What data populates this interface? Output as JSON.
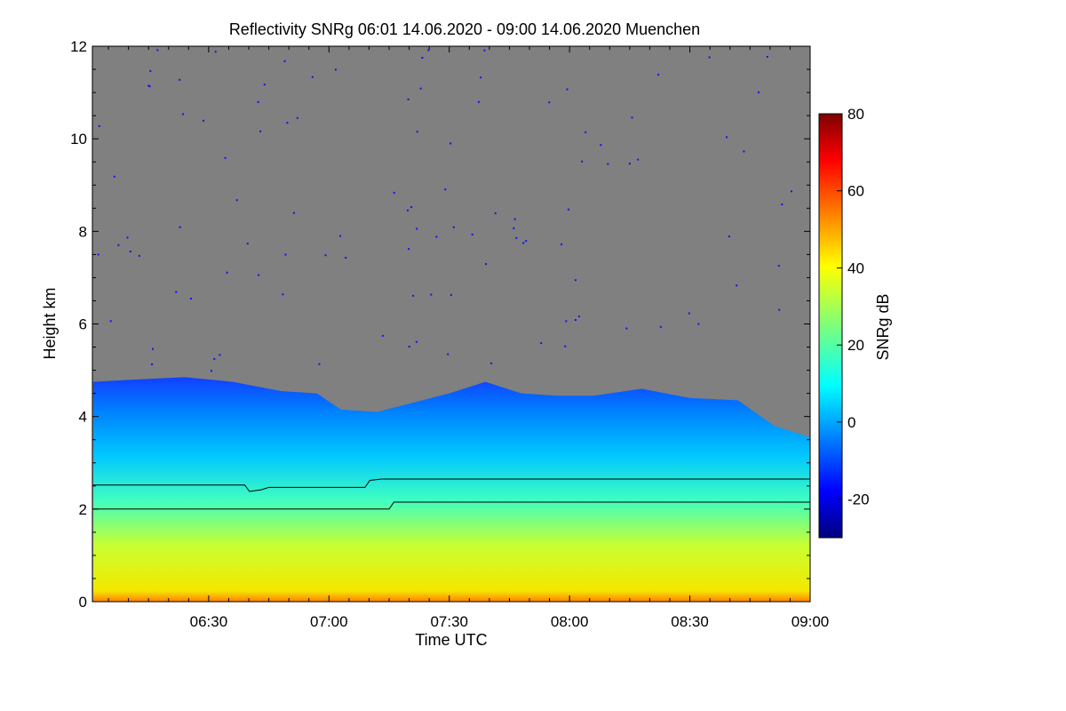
{
  "chart_data": {
    "type": "heatmap",
    "title": "Reflectivity SNRg   06:01 14.06.2020 - 09:00 14.06.2020 Muenchen",
    "xlabel": "Time UTC",
    "ylabel": "Height km",
    "x_ticks": [
      "06:30",
      "07:00",
      "07:30",
      "08:00",
      "08:30",
      "09:00"
    ],
    "x_tick_hours": [
      6.5,
      7.0,
      7.5,
      8.0,
      8.5,
      9.0
    ],
    "xlim_hours": [
      6.0167,
      9.0
    ],
    "ylim": [
      0,
      12
    ],
    "y_ticks": [
      0,
      2,
      4,
      6,
      8,
      10,
      12
    ],
    "colorbar": {
      "label": "SNRg dB",
      "range": [
        -30,
        80
      ],
      "ticks": [
        -20,
        0,
        20,
        40,
        60,
        80
      ],
      "colormap": "jet"
    },
    "no_signal_color": "#808080",
    "cloud_top_km": [
      [
        6.02,
        4.75
      ],
      [
        6.2,
        4.8
      ],
      [
        6.4,
        4.85
      ],
      [
        6.6,
        4.75
      ],
      [
        6.8,
        4.55
      ],
      [
        6.95,
        4.5
      ],
      [
        7.05,
        4.15
      ],
      [
        7.2,
        4.1
      ],
      [
        7.35,
        4.3
      ],
      [
        7.5,
        4.5
      ],
      [
        7.65,
        4.75
      ],
      [
        7.8,
        4.5
      ],
      [
        7.95,
        4.45
      ],
      [
        8.1,
        4.45
      ],
      [
        8.3,
        4.6
      ],
      [
        8.5,
        4.4
      ],
      [
        8.7,
        4.35
      ],
      [
        8.85,
        3.8
      ],
      [
        9.0,
        3.55
      ]
    ],
    "boundary_lines_km": [
      {
        "points": [
          [
            6.02,
            2.52
          ],
          [
            6.65,
            2.52
          ],
          [
            6.67,
            2.38
          ],
          [
            6.72,
            2.42
          ],
          [
            6.75,
            2.47
          ],
          [
            7.15,
            2.47
          ],
          [
            7.17,
            2.62
          ],
          [
            7.22,
            2.65
          ],
          [
            9.0,
            2.65
          ]
        ]
      },
      {
        "points": [
          [
            6.02,
            2.0
          ],
          [
            7.25,
            2.0
          ],
          [
            7.27,
            2.15
          ],
          [
            9.0,
            2.15
          ]
        ]
      }
    ],
    "snr_profile_db": [
      {
        "height_km": 0.1,
        "snr": 52
      },
      {
        "height_km": 0.6,
        "snr": 44
      },
      {
        "height_km": 1.5,
        "snr": 36
      },
      {
        "height_km": 2.5,
        "snr": 24
      },
      {
        "height_km": 3.5,
        "snr": 8
      },
      {
        "height_km": 4.5,
        "snr": -10
      }
    ]
  }
}
